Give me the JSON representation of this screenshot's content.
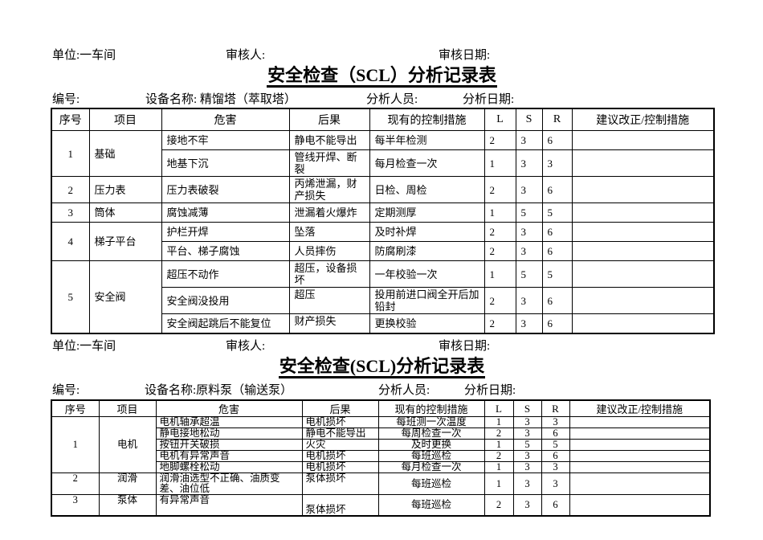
{
  "document": {
    "sections": [
      {
        "unit_label": "单位:一车间",
        "reviewer_label": "审核人:",
        "review_date_label": "审核日期:",
        "title": "安全检查（SCL）分析记录表",
        "number_label": "编号:",
        "equipment_label": "设备名称: 精馏塔（萃取塔）",
        "analyst_label": "分析人员:",
        "analysis_date_label": "分析日期:",
        "table": {
          "headers": [
            "序号",
            "项目",
            "危害",
            "后果",
            "现有的控制措施",
            "L",
            "S",
            "R",
            "建议改正/控制措施"
          ],
          "rows": [
            {
              "c": [
                {
                  "t": "1",
                  "rs": 2,
                  "al": "c"
                },
                {
                  "t": "基础",
                  "rs": 2
                },
                {
                  "t": "接地不牢"
                },
                {
                  "t": "静电不能导出"
                },
                {
                  "t": "每半年检测"
                },
                {
                  "t": "2"
                },
                {
                  "t": "3"
                },
                {
                  "t": "6"
                },
                {
                  "t": ""
                }
              ]
            },
            {
              "c": [
                {
                  "t": "地基下沉"
                },
                {
                  "t": "管线开焊、断裂"
                },
                {
                  "t": "每月检查一次"
                },
                {
                  "t": "1"
                },
                {
                  "t": "3"
                },
                {
                  "t": "3"
                },
                {
                  "t": ""
                }
              ]
            },
            {
              "c": [
                {
                  "t": "2",
                  "al": "c"
                },
                {
                  "t": "压力表"
                },
                {
                  "t": "压力表破裂"
                },
                {
                  "t": "丙烯泄漏，财产损失"
                },
                {
                  "t": "日检、周检"
                },
                {
                  "t": "2"
                },
                {
                  "t": "3"
                },
                {
                  "t": "6"
                },
                {
                  "t": ""
                }
              ]
            },
            {
              "c": [
                {
                  "t": "3",
                  "al": "c"
                },
                {
                  "t": "筒体"
                },
                {
                  "t": "腐蚀减薄"
                },
                {
                  "t": "泄漏着火爆炸"
                },
                {
                  "t": "定期测厚"
                },
                {
                  "t": "1"
                },
                {
                  "t": "5"
                },
                {
                  "t": "5"
                },
                {
                  "t": ""
                }
              ]
            },
            {
              "c": [
                {
                  "t": "4",
                  "rs": 2,
                  "al": "c"
                },
                {
                  "t": "梯子平台",
                  "rs": 2
                },
                {
                  "t": "护栏开焊"
                },
                {
                  "t": "坠落"
                },
                {
                  "t": "及时补焊"
                },
                {
                  "t": "2"
                },
                {
                  "t": "3"
                },
                {
                  "t": "6"
                },
                {
                  "t": ""
                }
              ]
            },
            {
              "c": [
                {
                  "t": "平台、梯子腐蚀"
                },
                {
                  "t": "人员摔伤"
                },
                {
                  "t": "防腐刷漆"
                },
                {
                  "t": "2"
                },
                {
                  "t": "3"
                },
                {
                  "t": "6"
                },
                {
                  "t": ""
                }
              ]
            },
            {
              "c": [
                {
                  "t": "5",
                  "rs": 3,
                  "al": "c"
                },
                {
                  "t": "安全阀",
                  "rs": 3
                },
                {
                  "t": "超压不动作"
                },
                {
                  "t": "超压，设备损坏"
                },
                {
                  "t": "一年校验一次"
                },
                {
                  "t": "1"
                },
                {
                  "t": "5"
                },
                {
                  "t": "5"
                },
                {
                  "t": ""
                }
              ]
            },
            {
              "c": [
                {
                  "t": "安全阀没投用"
                },
                {
                  "t": "超压",
                  "va": "t"
                },
                {
                  "t": "投用前进口阀全开后加铅封"
                },
                {
                  "t": "2"
                },
                {
                  "t": "3"
                },
                {
                  "t": "6"
                },
                {
                  "t": ""
                }
              ]
            },
            {
              "c": [
                {
                  "t": "安全阀起跳后不能复位"
                },
                {
                  "t": "财产损失",
                  "va": "t"
                },
                {
                  "t": "更换校验"
                },
                {
                  "t": "2"
                },
                {
                  "t": "3"
                },
                {
                  "t": "6"
                },
                {
                  "t": ""
                }
              ]
            }
          ]
        }
      },
      {
        "unit_label": "单位:一车间",
        "reviewer_label": "审核人:",
        "review_date_label": "审核日期:",
        "title": "安全检查(SCL)分析记录表",
        "number_label": "编号:",
        "equipment_label": "设备名称:原料泵（输送泵）",
        "analyst_label": "分析人员:",
        "analysis_date_label": "分析日期:",
        "table": {
          "headers": [
            "序号",
            "项目",
            "危害",
            "后果",
            "现有的控制措施",
            "L",
            "S",
            "R",
            "建议改正/控制措施"
          ],
          "rows": [
            {
              "c": [
                {
                  "t": "1",
                  "rs": 5
                },
                {
                  "t": "电机",
                  "rs": 5
                },
                {
                  "t": "电机轴承超温",
                  "al": "l"
                },
                {
                  "t": "电机损坏",
                  "al": "l"
                },
                {
                  "t": "每班测一次温度"
                },
                {
                  "t": "1"
                },
                {
                  "t": "3"
                },
                {
                  "t": "3"
                },
                {
                  "t": ""
                }
              ]
            },
            {
              "c": [
                {
                  "t": "静电接地松动",
                  "al": "l"
                },
                {
                  "t": "静电不能导出",
                  "al": "l"
                },
                {
                  "t": "每周检查一次"
                },
                {
                  "t": "2"
                },
                {
                  "t": "3"
                },
                {
                  "t": "6"
                },
                {
                  "t": ""
                }
              ]
            },
            {
              "c": [
                {
                  "t": "按钮开关破损",
                  "al": "l"
                },
                {
                  "t": "火灾",
                  "al": "l"
                },
                {
                  "t": "及时更换"
                },
                {
                  "t": "1"
                },
                {
                  "t": "5"
                },
                {
                  "t": "5"
                },
                {
                  "t": ""
                }
              ]
            },
            {
              "c": [
                {
                  "t": "电机有异常声音",
                  "al": "l"
                },
                {
                  "t": "电机损坏",
                  "al": "l"
                },
                {
                  "t": "每班巡检"
                },
                {
                  "t": "2"
                },
                {
                  "t": "3"
                },
                {
                  "t": "6"
                },
                {
                  "t": ""
                }
              ]
            },
            {
              "c": [
                {
                  "t": "地脚螺栓松动",
                  "al": "l"
                },
                {
                  "t": "电机损坏",
                  "al": "l"
                },
                {
                  "t": "每月检查一次"
                },
                {
                  "t": "1"
                },
                {
                  "t": "3"
                },
                {
                  "t": "3"
                },
                {
                  "t": ""
                }
              ]
            },
            {
              "c": [
                {
                  "t": "2",
                  "va": "t"
                },
                {
                  "t": "润滑",
                  "va": "t"
                },
                {
                  "t": "润滑油选型不正确、油质变差、油位低",
                  "al": "l"
                },
                {
                  "t": "泵体损坏",
                  "al": "l",
                  "va": "t"
                },
                {
                  "t": "每班巡检"
                },
                {
                  "t": "1"
                },
                {
                  "t": "3"
                },
                {
                  "t": "3"
                },
                {
                  "t": ""
                }
              ]
            },
            {
              "h": 26,
              "c": [
                {
                  "t": "3",
                  "va": "t"
                },
                {
                  "t": "泵体",
                  "va": "t"
                },
                {
                  "t": "有异常声音",
                  "al": "l",
                  "va": "t"
                },
                {
                  "t": "泵体损坏",
                  "al": "l",
                  "va": "b"
                },
                {
                  "t": "每班巡检"
                },
                {
                  "t": "2"
                },
                {
                  "t": "3"
                },
                {
                  "t": "6"
                },
                {
                  "t": ""
                }
              ]
            }
          ]
        }
      }
    ]
  }
}
